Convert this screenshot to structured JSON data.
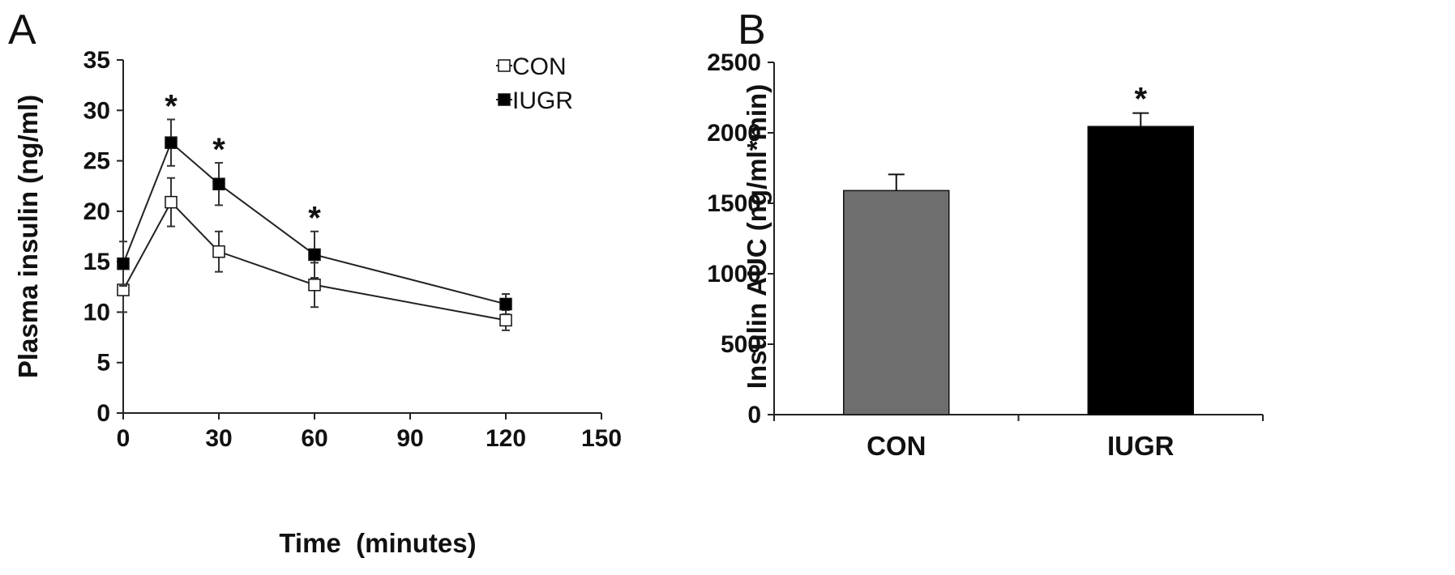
{
  "panels": [
    {
      "letter": "A"
    },
    {
      "letter": "B"
    }
  ],
  "chart_data": [
    {
      "type": "line",
      "panel": "A",
      "xlabel": "Time  (minutes)",
      "ylabel": "Plasma insulin (ng/ml)",
      "xlim": [
        0,
        150
      ],
      "ylim": [
        0,
        35
      ],
      "xticks": [
        0,
        30,
        60,
        90,
        120,
        150
      ],
      "yticks": [
        0,
        5,
        10,
        15,
        20,
        25,
        30,
        35
      ],
      "x": [
        0,
        15,
        30,
        60,
        120
      ],
      "legend_position": "top-right",
      "grid": false,
      "series": [
        {
          "name": "CON",
          "marker": "open-square",
          "color": "#ffffff",
          "values": [
            12.2,
            20.9,
            16.0,
            12.7,
            9.2
          ],
          "errors": [
            2.2,
            2.4,
            2.0,
            2.2,
            1.0
          ]
        },
        {
          "name": "IUGR",
          "marker": "filled-square",
          "color": "#000000",
          "values": [
            14.8,
            26.8,
            22.7,
            15.7,
            10.8
          ],
          "errors": [
            2.2,
            2.3,
            2.1,
            2.3,
            1.0
          ]
        }
      ],
      "annotations": [
        {
          "text": "*",
          "x": 15,
          "y": 29.2
        },
        {
          "text": "*",
          "x": 30,
          "y": 24.9
        },
        {
          "text": "*",
          "x": 60,
          "y": 18.1
        }
      ]
    },
    {
      "type": "bar",
      "panel": "B",
      "ylabel": "Insulin AUC (ng/ml*min)",
      "ylim": [
        0,
        2500
      ],
      "yticks": [
        0,
        500,
        1000,
        1500,
        2000,
        2500
      ],
      "categories": [
        "CON",
        "IUGR"
      ],
      "values": [
        1590,
        2045
      ],
      "errors": [
        115,
        95
      ],
      "colors": [
        "#6e6e6e",
        "#000000"
      ],
      "grid": false,
      "annotations": [
        {
          "text": "*",
          "category": "IUGR"
        }
      ]
    }
  ]
}
